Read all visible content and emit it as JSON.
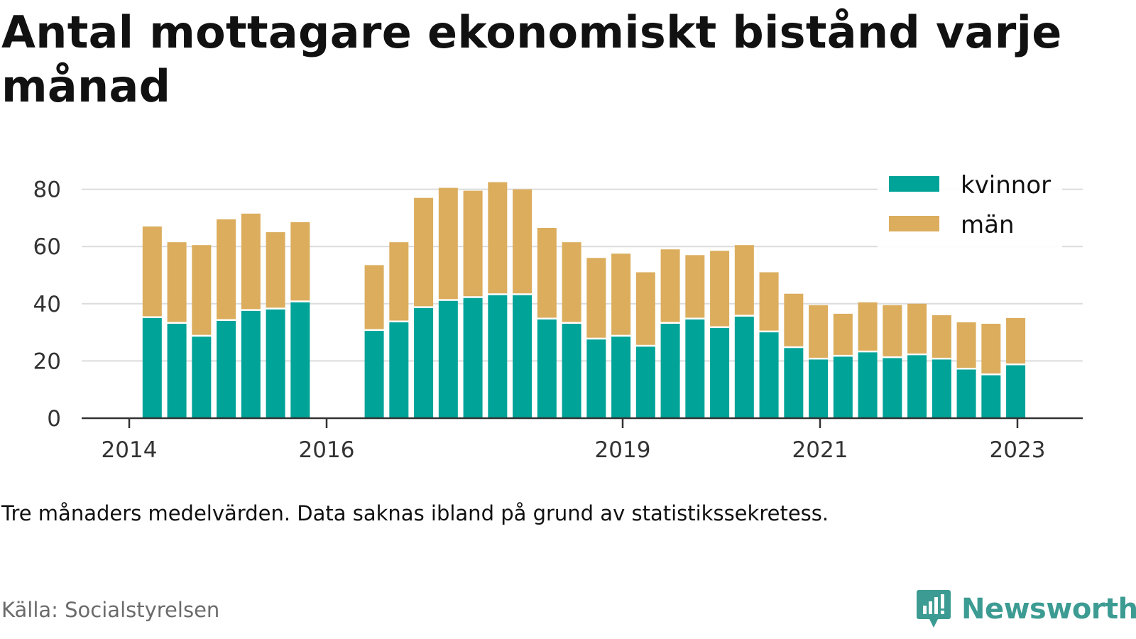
{
  "title": "Antal mottagare ekonomiskt bistånd varje månad",
  "note": "Tre månaders medelvärden. Data saknas ibland på grund av statistikssekretess.",
  "source": "Källa: Socialstyrelsen",
  "brand": {
    "name": "Newsworthy",
    "icon": "newsworthy-logo-icon",
    "color": "#3c9b92"
  },
  "chart_data": {
    "type": "bar",
    "stacked": true,
    "x_axis": "time",
    "x_ticks": [
      "2014",
      "2016",
      "2019",
      "2021",
      "2023"
    ],
    "y_ticks": [
      "0",
      "20",
      "40",
      "60",
      "80"
    ],
    "ylim": [
      0,
      85
    ],
    "grid": "horizontal",
    "legend_position": "top-right",
    "series": [
      {
        "name": "kvinnor",
        "color": "#00a398",
        "values": [
          35,
          33,
          28.5,
          34,
          37.5,
          38,
          40.5,
          30.5,
          33.5,
          38.5,
          41,
          42,
          43,
          43,
          34.5,
          33,
          27.5,
          28.5,
          25,
          33,
          34.5,
          31.5,
          35.5,
          30,
          24.5,
          20.5,
          21.5,
          23,
          21,
          22,
          20.5,
          17,
          15,
          18.5
        ]
      },
      {
        "name": "män",
        "color": "#dbad5d",
        "values": [
          32,
          28.5,
          32,
          35.5,
          34,
          27,
          28,
          23,
          28,
          38.5,
          39.5,
          37.5,
          39.5,
          37,
          32,
          28.5,
          28.5,
          29,
          26,
          26,
          22.5,
          27,
          25,
          21,
          19,
          19,
          15,
          17.5,
          18.5,
          18,
          15.5,
          16.5,
          18,
          16.5
        ]
      }
    ],
    "points": [
      {
        "x": "2014-05",
        "kvinnor": 35,
        "män": 32
      },
      {
        "x": "2014-08",
        "kvinnor": 33,
        "män": 28.5
      },
      {
        "x": "2014-11",
        "kvinnor": 28.5,
        "män": 32
      },
      {
        "x": "2015-02",
        "kvinnor": 34,
        "män": 35.5
      },
      {
        "x": "2015-05",
        "kvinnor": 37.5,
        "män": 34
      },
      {
        "x": "2015-08",
        "kvinnor": 38,
        "män": 27
      },
      {
        "x": "2015-11",
        "kvinnor": 40.5,
        "män": 28
      },
      {
        "x": "2016-08",
        "kvinnor": 30.5,
        "män": 23
      },
      {
        "x": "2016-11",
        "kvinnor": 33.5,
        "män": 28
      },
      {
        "x": "2017-02",
        "kvinnor": 38.5,
        "män": 38.5
      },
      {
        "x": "2017-05",
        "kvinnor": 41,
        "män": 39.5
      },
      {
        "x": "2017-08",
        "kvinnor": 42,
        "män": 37.5
      },
      {
        "x": "2017-11",
        "kvinnor": 43,
        "män": 39.5
      },
      {
        "x": "2018-02",
        "kvinnor": 43,
        "män": 37
      },
      {
        "x": "2018-05",
        "kvinnor": 34.5,
        "män": 32
      },
      {
        "x": "2018-08",
        "kvinnor": 33,
        "män": 28.5
      },
      {
        "x": "2018-11",
        "kvinnor": 27.5,
        "män": 28.5
      },
      {
        "x": "2019-02",
        "kvinnor": 28.5,
        "män": 29
      },
      {
        "x": "2019-05",
        "kvinnor": 25,
        "män": 26
      },
      {
        "x": "2019-08",
        "kvinnor": 33,
        "män": 26
      },
      {
        "x": "2019-11",
        "kvinnor": 34.5,
        "män": 22.5
      },
      {
        "x": "2020-02",
        "kvinnor": 31.5,
        "män": 27
      },
      {
        "x": "2020-05",
        "kvinnor": 35.5,
        "män": 25
      },
      {
        "x": "2020-08",
        "kvinnor": 30,
        "män": 21
      },
      {
        "x": "2020-11",
        "kvinnor": 24.5,
        "män": 19
      },
      {
        "x": "2021-02",
        "kvinnor": 20.5,
        "män": 19
      },
      {
        "x": "2021-05",
        "kvinnor": 21.5,
        "män": 15
      },
      {
        "x": "2021-08",
        "kvinnor": 23,
        "män": 17.5
      },
      {
        "x": "2021-11",
        "kvinnor": 21,
        "män": 18.5
      },
      {
        "x": "2022-02",
        "kvinnor": 22,
        "män": 18
      },
      {
        "x": "2022-05",
        "kvinnor": 20.5,
        "män": 15.5
      },
      {
        "x": "2022-08",
        "kvinnor": 17,
        "män": 16.5
      },
      {
        "x": "2022-11",
        "kvinnor": 15,
        "män": 18
      },
      {
        "x": "2023-02",
        "kvinnor": 18.5,
        "män": 16.5
      }
    ]
  }
}
